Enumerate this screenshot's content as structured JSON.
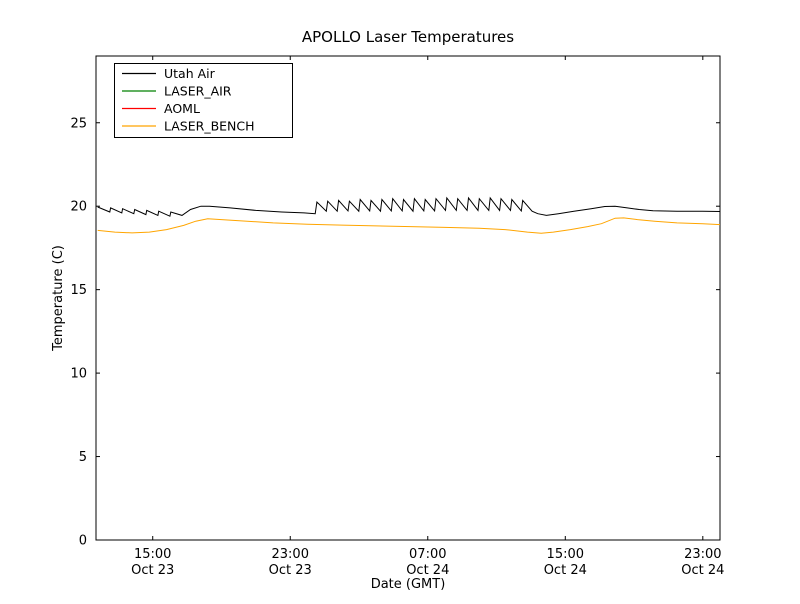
{
  "chart_data": {
    "type": "line",
    "title": "APOLLO Laser Temperatures",
    "xlabel": "Date (GMT)",
    "ylabel": "Temperature (C)",
    "x_axis_unit": "hours_from_Oct23_12:00_GMT",
    "xlim": [
      -0.3,
      36.0
    ],
    "ylim": [
      0,
      29
    ],
    "grid": false,
    "legend_position": "upper left",
    "yticks": [
      0,
      5,
      10,
      15,
      20,
      25
    ],
    "xticks": [
      {
        "value": 3,
        "time": "15:00",
        "date": "Oct 23"
      },
      {
        "value": 11,
        "time": "23:00",
        "date": "Oct 23"
      },
      {
        "value": 19,
        "time": "07:00",
        "date": "Oct 24"
      },
      {
        "value": 27,
        "time": "15:00",
        "date": "Oct 24"
      },
      {
        "value": 35,
        "time": "23:00",
        "date": "Oct 24"
      }
    ],
    "series": [
      {
        "name": "Utah Air",
        "color": "#000000",
        "points": [
          [
            -0.2,
            19.95
          ],
          [
            0.5,
            19.65
          ],
          [
            0.55,
            19.9
          ],
          [
            1.2,
            19.6
          ],
          [
            1.25,
            19.85
          ],
          [
            1.9,
            19.55
          ],
          [
            1.95,
            19.8
          ],
          [
            2.6,
            19.5
          ],
          [
            2.65,
            19.75
          ],
          [
            3.3,
            19.45
          ],
          [
            3.35,
            19.7
          ],
          [
            4.0,
            19.4
          ],
          [
            4.05,
            19.65
          ],
          [
            4.7,
            19.45
          ],
          [
            5.2,
            19.8
          ],
          [
            5.8,
            20.0
          ],
          [
            6.3,
            20.0
          ],
          [
            7.5,
            19.9
          ],
          [
            9.0,
            19.75
          ],
          [
            10.5,
            19.65
          ],
          [
            11.8,
            19.6
          ],
          [
            12.45,
            19.55
          ],
          [
            12.55,
            20.25
          ],
          [
            13.1,
            19.7
          ],
          [
            13.18,
            20.3
          ],
          [
            13.73,
            19.7
          ],
          [
            13.81,
            20.35
          ],
          [
            14.36,
            19.72
          ],
          [
            14.44,
            20.3
          ],
          [
            14.99,
            19.7
          ],
          [
            15.07,
            20.4
          ],
          [
            15.62,
            19.72
          ],
          [
            15.7,
            20.35
          ],
          [
            16.25,
            19.7
          ],
          [
            16.33,
            20.4
          ],
          [
            16.88,
            19.72
          ],
          [
            16.96,
            20.45
          ],
          [
            17.51,
            19.72
          ],
          [
            17.59,
            20.4
          ],
          [
            18.14,
            19.7
          ],
          [
            18.22,
            20.45
          ],
          [
            18.77,
            19.72
          ],
          [
            18.85,
            20.4
          ],
          [
            19.4,
            19.72
          ],
          [
            19.48,
            20.45
          ],
          [
            20.03,
            19.75
          ],
          [
            20.11,
            20.5
          ],
          [
            20.66,
            19.75
          ],
          [
            20.74,
            20.45
          ],
          [
            21.29,
            19.75
          ],
          [
            21.37,
            20.5
          ],
          [
            21.92,
            19.75
          ],
          [
            22.0,
            20.45
          ],
          [
            22.55,
            19.75
          ],
          [
            22.63,
            20.5
          ],
          [
            23.18,
            19.75
          ],
          [
            23.26,
            20.45
          ],
          [
            23.81,
            19.75
          ],
          [
            23.89,
            20.4
          ],
          [
            24.44,
            19.72
          ],
          [
            24.52,
            20.35
          ],
          [
            25.07,
            19.7
          ],
          [
            25.4,
            19.55
          ],
          [
            25.9,
            19.45
          ],
          [
            26.6,
            19.55
          ],
          [
            27.5,
            19.7
          ],
          [
            28.5,
            19.85
          ],
          [
            29.3,
            19.98
          ],
          [
            29.9,
            20.0
          ],
          [
            30.6,
            19.9
          ],
          [
            31.3,
            19.8
          ],
          [
            32.1,
            19.73
          ],
          [
            33.5,
            19.7
          ],
          [
            35.0,
            19.7
          ],
          [
            36.0,
            19.68
          ]
        ]
      },
      {
        "name": "LASER_AIR",
        "color": "#008000",
        "points": []
      },
      {
        "name": "AOML",
        "color": "#ff0000",
        "points": []
      },
      {
        "name": "LASER_BENCH",
        "color": "#ffa500",
        "points": [
          [
            -0.2,
            18.55
          ],
          [
            0.8,
            18.45
          ],
          [
            1.8,
            18.4
          ],
          [
            2.8,
            18.45
          ],
          [
            3.8,
            18.6
          ],
          [
            4.8,
            18.85
          ],
          [
            5.5,
            19.1
          ],
          [
            6.2,
            19.25
          ],
          [
            7.0,
            19.2
          ],
          [
            8.5,
            19.1
          ],
          [
            10.0,
            19.0
          ],
          [
            12.0,
            18.92
          ],
          [
            14.0,
            18.87
          ],
          [
            16.0,
            18.82
          ],
          [
            18.0,
            18.78
          ],
          [
            20.0,
            18.73
          ],
          [
            22.0,
            18.68
          ],
          [
            23.5,
            18.6
          ],
          [
            24.8,
            18.45
          ],
          [
            25.6,
            18.38
          ],
          [
            26.3,
            18.45
          ],
          [
            27.3,
            18.6
          ],
          [
            28.3,
            18.78
          ],
          [
            29.1,
            18.95
          ],
          [
            29.9,
            19.28
          ],
          [
            30.4,
            19.3
          ],
          [
            31.2,
            19.2
          ],
          [
            32.2,
            19.1
          ],
          [
            33.5,
            19.0
          ],
          [
            35.0,
            18.95
          ],
          [
            36.0,
            18.9
          ]
        ]
      }
    ]
  }
}
